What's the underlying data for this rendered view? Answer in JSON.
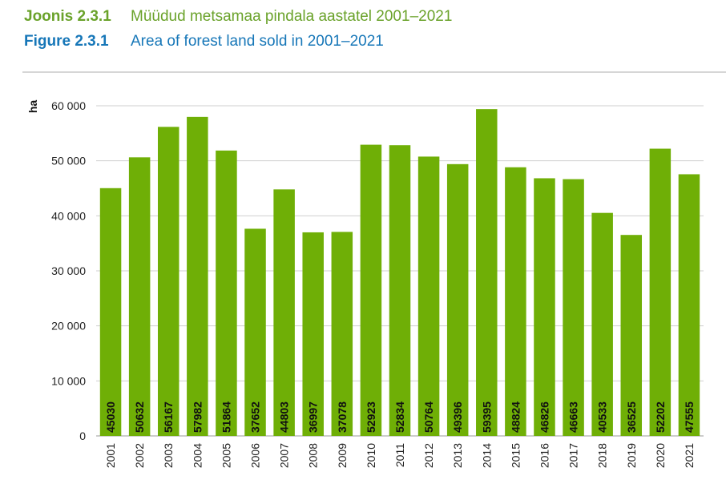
{
  "header": {
    "et_label": "Joonis 2.3.1",
    "et_title": "Müüdud metsamaa pindala aastatel 2001–2021",
    "en_label": "Figure 2.3.1",
    "en_title": "Area of forest land sold in 2001–2021"
  },
  "colors": {
    "bar": "#6faf06",
    "grid": "#cfcfcf",
    "et_header": "#6aa22a",
    "en_header": "#1777b8"
  },
  "chart_data": {
    "type": "bar",
    "title": "Area of forest land sold in 2001–2021",
    "ylabel": "ha",
    "xlabel": "",
    "ylim": [
      0,
      60000
    ],
    "yticks": [
      0,
      10000,
      20000,
      30000,
      40000,
      50000,
      60000
    ],
    "ytick_labels": [
      "0",
      "10 000",
      "20 000",
      "30 000",
      "40 000",
      "50 000",
      "60 000"
    ],
    "grid": true,
    "categories": [
      "2001",
      "2002",
      "2003",
      "2004",
      "2005",
      "2006",
      "2007",
      "2008",
      "2009",
      "2010",
      "2011",
      "2012",
      "2013",
      "2014",
      "2015",
      "2016",
      "2017",
      "2018",
      "2019",
      "2020",
      "2021"
    ],
    "values": [
      45030,
      50632,
      56167,
      57982,
      51864,
      37652,
      44803,
      36997,
      37078,
      52923,
      52834,
      50764,
      49396,
      59395,
      48824,
      46826,
      46663,
      40533,
      36525,
      52202,
      47555
    ]
  }
}
